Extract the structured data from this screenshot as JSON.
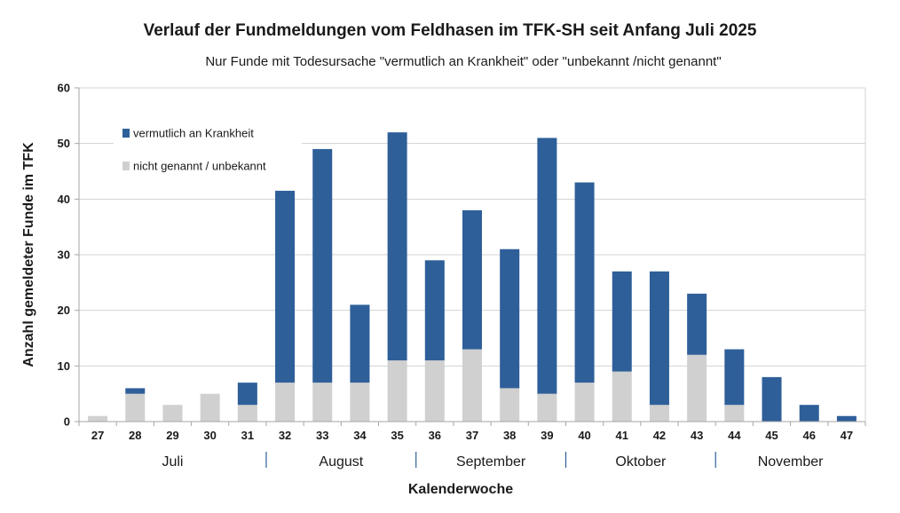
{
  "chart_data": {
    "type": "bar",
    "stacked": true,
    "title": "Verlauf der Fundmeldungen vom Feldhasen im TFK-SH seit Anfang Juli 2025",
    "subtitle": "Nur Funde mit Todesursache \"vermutlich an Krankheit\" oder \"unbekannt /nicht genannt\"",
    "xlabel": "Kalenderwoche",
    "ylabel": "Anzahl gemeldeter Funde im TFK",
    "ylim": [
      0,
      60
    ],
    "yticks": [
      0,
      10,
      20,
      30,
      40,
      50,
      60
    ],
    "grid": true,
    "categories": [
      "27",
      "28",
      "29",
      "30",
      "31",
      "32",
      "33",
      "34",
      "35",
      "36",
      "37",
      "38",
      "39",
      "40",
      "41",
      "42",
      "43",
      "44",
      "45",
      "46",
      "47"
    ],
    "series": [
      {
        "name": "nicht genannt / unbekannt",
        "color": "#d0d0d0",
        "values": [
          1,
          5,
          3,
          5,
          3,
          7,
          7,
          7,
          11,
          11,
          13,
          6,
          5,
          7,
          9,
          3,
          12,
          3,
          0,
          0,
          0
        ]
      },
      {
        "name": "vermutlich an Krankheit",
        "color": "#2e5f99",
        "values": [
          0,
          1,
          0,
          0,
          4,
          34.5,
          42,
          14,
          41,
          18,
          25,
          25,
          46,
          36,
          18,
          24,
          11,
          10,
          8,
          3,
          1
        ]
      }
    ],
    "legend": [
      {
        "label": "vermutlich an Krankheit",
        "color": "#2e5f99"
      },
      {
        "label": "nicht genannt / unbekannt",
        "color": "#d0d0d0"
      }
    ],
    "legend_position": "top-left",
    "months": [
      {
        "label": "Juli",
        "from": "27",
        "to": "31"
      },
      {
        "label": "August",
        "from": "32",
        "to": "35"
      },
      {
        "label": "September",
        "from": "36",
        "to": "39"
      },
      {
        "label": "Oktober",
        "from": "40",
        "to": "43"
      },
      {
        "label": "November",
        "from": "44",
        "to": "47"
      }
    ]
  }
}
